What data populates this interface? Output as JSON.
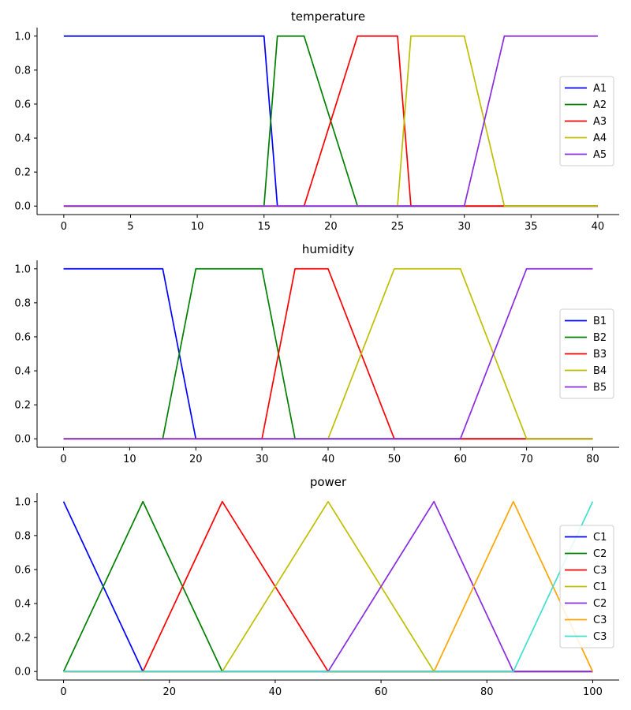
{
  "chart_data": [
    {
      "type": "line",
      "title": "temperature",
      "xlabel": "",
      "ylabel": "",
      "xlim": [
        -2,
        41.6
      ],
      "ylim": [
        -0.05,
        1.05
      ],
      "xticks": [
        0,
        5,
        10,
        15,
        20,
        25,
        30,
        35,
        40
      ],
      "yticks": [
        "0.0",
        "0.2",
        "0.4",
        "0.6",
        "0.8",
        "1.0"
      ],
      "legend_position": "center-right",
      "series": [
        {
          "name": "A1",
          "color": "#0000ff",
          "x": [
            0,
            15,
            16,
            40
          ],
          "y": [
            1,
            1,
            0,
            0
          ]
        },
        {
          "name": "A2",
          "color": "#008000",
          "x": [
            0,
            15,
            16,
            18,
            22,
            40
          ],
          "y": [
            0,
            0,
            1,
            1,
            0,
            0
          ]
        },
        {
          "name": "A3",
          "color": "#ff0000",
          "x": [
            0,
            18,
            22,
            25,
            26,
            40
          ],
          "y": [
            0,
            0,
            1,
            1,
            0,
            0
          ]
        },
        {
          "name": "A4",
          "color": "#bfbf00",
          "x": [
            0,
            25,
            26,
            30,
            33,
            40
          ],
          "y": [
            0,
            0,
            1,
            1,
            0,
            0
          ]
        },
        {
          "name": "A5",
          "color": "#8a2be2",
          "x": [
            0,
            30,
            33,
            40
          ],
          "y": [
            0,
            0,
            1,
            1
          ]
        }
      ]
    },
    {
      "type": "line",
      "title": "humidity",
      "xlabel": "",
      "ylabel": "",
      "xlim": [
        -4,
        84
      ],
      "ylim": [
        -0.05,
        1.05
      ],
      "xticks": [
        0,
        10,
        20,
        30,
        40,
        50,
        60,
        70,
        80
      ],
      "yticks": [
        "0.0",
        "0.2",
        "0.4",
        "0.6",
        "0.8",
        "1.0"
      ],
      "legend_position": "center-right",
      "series": [
        {
          "name": "B1",
          "color": "#0000ff",
          "x": [
            0,
            15,
            20,
            80
          ],
          "y": [
            1,
            1,
            0,
            0
          ]
        },
        {
          "name": "B2",
          "color": "#008000",
          "x": [
            0,
            15,
            20,
            30,
            35,
            80
          ],
          "y": [
            0,
            0,
            1,
            1,
            0,
            0
          ]
        },
        {
          "name": "B3",
          "color": "#ff0000",
          "x": [
            0,
            30,
            35,
            40,
            50,
            80
          ],
          "y": [
            0,
            0,
            1,
            1,
            0,
            0
          ]
        },
        {
          "name": "B4",
          "color": "#bfbf00",
          "x": [
            0,
            40,
            50,
            60,
            70,
            80
          ],
          "y": [
            0,
            0,
            1,
            1,
            0,
            0
          ]
        },
        {
          "name": "B5",
          "color": "#8a2be2",
          "x": [
            0,
            60,
            70,
            80
          ],
          "y": [
            0,
            0,
            1,
            1
          ]
        }
      ]
    },
    {
      "type": "line",
      "title": "power",
      "xlabel": "",
      "ylabel": "",
      "xlim": [
        -5,
        105
      ],
      "ylim": [
        -0.05,
        1.05
      ],
      "xticks": [
        0,
        20,
        40,
        60,
        80,
        100
      ],
      "yticks": [
        "0.0",
        "0.2",
        "0.4",
        "0.6",
        "0.8",
        "1.0"
      ],
      "legend_position": "center-right",
      "series": [
        {
          "name": "C1",
          "color": "#0000ff",
          "x": [
            0,
            15,
            100
          ],
          "y": [
            1,
            0,
            0
          ]
        },
        {
          "name": "C2",
          "color": "#008000",
          "x": [
            0,
            15,
            30,
            100
          ],
          "y": [
            0,
            1,
            0,
            0
          ]
        },
        {
          "name": "C3",
          "color": "#ff0000",
          "x": [
            0,
            15,
            30,
            50,
            100
          ],
          "y": [
            0,
            0,
            1,
            0,
            0
          ]
        },
        {
          "name": "C1",
          "color": "#bfbf00",
          "x": [
            0,
            30,
            50,
            70,
            100
          ],
          "y": [
            0,
            0,
            1,
            0,
            0
          ]
        },
        {
          "name": "C2",
          "color": "#8a2be2",
          "x": [
            0,
            50,
            70,
            85,
            100
          ],
          "y": [
            0,
            0,
            1,
            0,
            0
          ]
        },
        {
          "name": "C3",
          "color": "#ffa500",
          "x": [
            0,
            70,
            85,
            100
          ],
          "y": [
            0,
            0,
            1,
            0
          ]
        },
        {
          "name": "C3",
          "color": "#40e0d0",
          "x": [
            0,
            85,
            100
          ],
          "y": [
            0,
            0,
            1
          ]
        }
      ]
    }
  ]
}
